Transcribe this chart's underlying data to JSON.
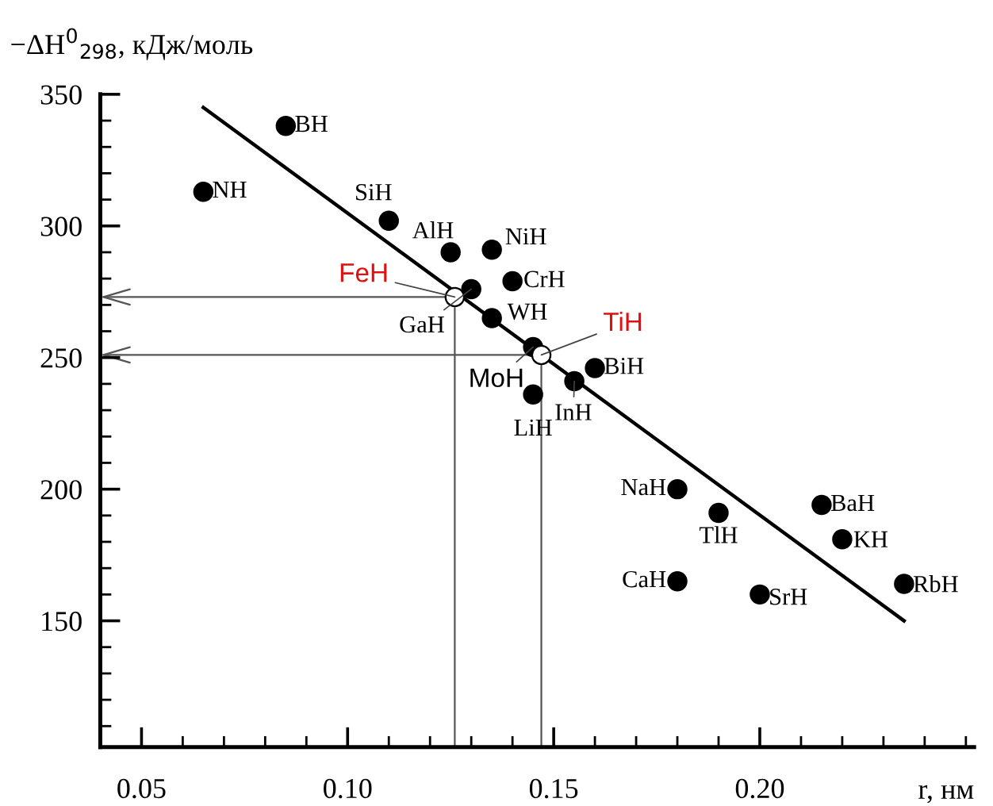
{
  "chart_data": {
    "type": "scatter",
    "xlabel": "r, нм",
    "ylabel": "−ΔH$^{0}$$_{298}$, кДж/моль",
    "xlim": [
      0.04,
      0.252
    ],
    "ylim": [
      102,
      350
    ],
    "xticks": [
      {
        "value": 0.04,
        "label": null
      },
      0.05,
      {
        "value": 0.06,
        "label": null
      },
      {
        "value": 0.07,
        "label": null
      },
      {
        "value": 0.08,
        "label": null
      },
      {
        "value": 0.09,
        "label": null
      },
      {
        "value": 0.1,
        "label": "0.10"
      },
      {
        "value": 0.11,
        "label": null
      },
      {
        "value": 0.12,
        "label": null
      },
      {
        "value": 0.13,
        "label": null
      },
      {
        "value": 0.14,
        "label": null
      },
      0.15,
      {
        "value": 0.16,
        "label": null
      },
      {
        "value": 0.17,
        "label": null
      },
      {
        "value": 0.18,
        "label": null
      },
      {
        "value": 0.19,
        "label": null
      },
      {
        "value": 0.2,
        "label": "0.20"
      },
      {
        "value": 0.21,
        "label": null
      },
      {
        "value": 0.22,
        "label": null
      },
      {
        "value": 0.23,
        "label": null
      },
      {
        "value": 0.24,
        "label": null
      },
      {
        "value": 0.25,
        "label": null
      }
    ],
    "yticks": [
      {
        "value": 110,
        "label": null
      },
      {
        "value": 120,
        "label": null
      },
      {
        "value": 130,
        "label": null
      },
      {
        "value": 140,
        "label": null
      },
      150,
      {
        "value": 160,
        "label": null
      },
      {
        "value": 170,
        "label": null
      },
      {
        "value": 180,
        "label": null
      },
      {
        "value": 190,
        "label": null
      },
      200,
      {
        "value": 210,
        "label": null
      },
      {
        "value": 220,
        "label": null
      },
      {
        "value": 230,
        "label": null
      },
      {
        "value": 240,
        "label": null
      },
      250,
      {
        "value": 260,
        "label": null
      },
      {
        "value": 270,
        "label": null
      },
      {
        "value": 280,
        "label": null
      },
      {
        "value": 290,
        "label": null
      },
      300,
      {
        "value": 310,
        "label": null
      },
      {
        "value": 320,
        "label": null
      },
      {
        "value": 330,
        "label": null
      },
      {
        "value": 340,
        "label": null
      },
      350
    ],
    "grid": false,
    "legend": false,
    "marker": "circle",
    "series": [
      {
        "type": "line",
        "color": "#000000",
        "x": [
          0.065,
          0.235
        ],
        "values": [
          345,
          150
        ],
        "line_style": "solid",
        "marker": "none"
      },
      {
        "color": "#000000",
        "x": [
          0.065,
          0.085,
          0.11,
          0.125,
          0.13,
          0.135,
          0.135,
          0.14,
          0.145,
          0.145,
          0.155,
          0.16,
          0.18,
          0.19,
          0.215,
          0.22,
          0.18,
          0.2,
          0.235
        ],
        "values": [
          313,
          338,
          302,
          290,
          276,
          291,
          265,
          279,
          254,
          236,
          241,
          246,
          200,
          191,
          194,
          181,
          165,
          160,
          164
        ]
      },
      {
        "color": "#ffffff",
        "x": [
          0.126,
          0.147
        ],
        "values": [
          273,
          251
        ]
      }
    ],
    "annotations": [
      {
        "text": "NH",
        "x": 0.065,
        "y": 313
      },
      {
        "text": "BH",
        "x": 0.085,
        "y": 338
      },
      {
        "text": "SiH",
        "x": 0.11,
        "y": 302
      },
      {
        "text": "AlH",
        "x": 0.125,
        "y": 290
      },
      {
        "text": "GaH",
        "x": 0.13,
        "y": 276
      },
      {
        "text": "NiH",
        "x": 0.135,
        "y": 291
      },
      {
        "text": "WH",
        "x": 0.135,
        "y": 265
      },
      {
        "text": "CrH",
        "x": 0.14,
        "y": 279
      },
      {
        "text": "MoH",
        "x": 0.145,
        "y": 254
      },
      {
        "text": "LiH",
        "x": 0.145,
        "y": 236
      },
      {
        "text": "InH",
        "x": 0.155,
        "y": 241
      },
      {
        "text": "BiH",
        "x": 0.16,
        "y": 246
      },
      {
        "text": "NaH",
        "x": 0.18,
        "y": 200
      },
      {
        "text": "TlH",
        "x": 0.19,
        "y": 191
      },
      {
        "text": "BaH",
        "x": 0.215,
        "y": 194
      },
      {
        "text": "KH",
        "x": 0.22,
        "y": 181
      },
      {
        "text": "CaH",
        "x": 0.18,
        "y": 165
      },
      {
        "text": "SrH",
        "x": 0.2,
        "y": 160
      },
      {
        "text": "RbH",
        "x": 0.235,
        "y": 164
      },
      {
        "text": "FeH",
        "x": 0.126,
        "y": 273
      },
      {
        "text": "TiH",
        "x": 0.147,
        "y": 251
      }
    ]
  }
}
